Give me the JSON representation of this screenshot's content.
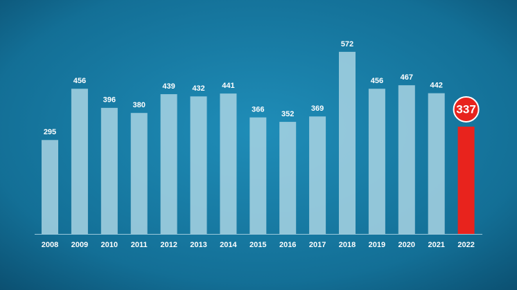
{
  "chart_data": {
    "type": "bar",
    "categories": [
      "2008",
      "2009",
      "2010",
      "2011",
      "2012",
      "2013",
      "2014",
      "2015",
      "2016",
      "2017",
      "2018",
      "2019",
      "2020",
      "2021",
      "2022"
    ],
    "values": [
      295,
      456,
      396,
      380,
      439,
      432,
      441,
      366,
      352,
      369,
      572,
      456,
      467,
      442,
      337
    ],
    "colors": [
      "#a8d3e3",
      "#a8d3e3",
      "#a8d3e3",
      "#a8d3e3",
      "#a8d3e3",
      "#a8d3e3",
      "#a8d3e3",
      "#a8d3e3",
      "#a8d3e3",
      "#a8d3e3",
      "#a8d3e3",
      "#a8d3e3",
      "#a8d3e3",
      "#a8d3e3",
      "#e8231d"
    ]
  }
}
